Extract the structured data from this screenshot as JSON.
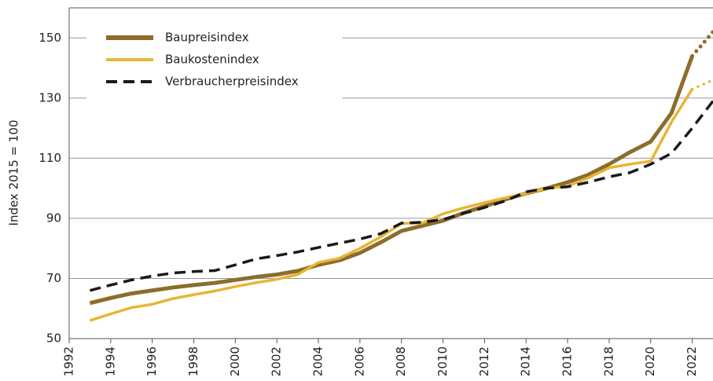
{
  "chart_data": {
    "type": "line",
    "y_label": "Index 2015 = 100",
    "x": [
      1993,
      1994,
      1995,
      1996,
      1997,
      1998,
      1999,
      2000,
      2001,
      2002,
      2003,
      2004,
      2005,
      2006,
      2007,
      2008,
      2009,
      2010,
      2011,
      2012,
      2013,
      2014,
      2015,
      2016,
      2017,
      2018,
      2019,
      2020,
      2021,
      2022,
      2023
    ],
    "series": [
      {
        "name": "Baupreisindex",
        "color": "#8c6d2c",
        "dash": "solid",
        "values": [
          61.8,
          63.5,
          65,
          66,
          67,
          67.8,
          68.5,
          69.5,
          70.5,
          71.3,
          72.5,
          74.5,
          76,
          78.5,
          82,
          85.8,
          87.5,
          89.2,
          91.8,
          94,
          96.3,
          98.3,
          100,
          102,
          104.5,
          108,
          112,
          115.5,
          125,
          144,
          152
        ]
      },
      {
        "name": "Baukostenindex",
        "color": "#e8b534",
        "dash": "solid",
        "values": [
          56,
          58.2,
          60.3,
          61.4,
          63.3,
          64.6,
          65.8,
          67.3,
          68.6,
          69.7,
          71.3,
          75.3,
          76.7,
          80,
          83.8,
          88.3,
          88.4,
          91.5,
          93.5,
          95.2,
          96.8,
          98.3,
          100,
          100.7,
          103.5,
          106.8,
          108,
          109,
          122,
          133,
          136
        ]
      },
      {
        "name": "Verbraucherpreisindex",
        "color": "#1a1a1a",
        "dash": "dashed",
        "values": [
          66,
          67.8,
          69.5,
          70.8,
          71.8,
          72.3,
          72.6,
          74.5,
          76.5,
          77.6,
          78.8,
          80.3,
          81.7,
          83.1,
          84.9,
          88.4,
          88.7,
          89.6,
          91.7,
          93.6,
          95.8,
          98.8,
          100,
          100.5,
          102,
          103.8,
          105.2,
          108,
          111.6,
          120,
          129
        ]
      }
    ],
    "xlim": [
      1992,
      2023
    ],
    "xticks": [
      1992,
      1994,
      1996,
      1998,
      2000,
      2002,
      2004,
      2006,
      2008,
      2010,
      2012,
      2014,
      2016,
      2018,
      2020,
      2022
    ],
    "ylim": [
      50,
      160
    ],
    "yticks": [
      50,
      70,
      90,
      110,
      130,
      150
    ],
    "grid": true
  }
}
